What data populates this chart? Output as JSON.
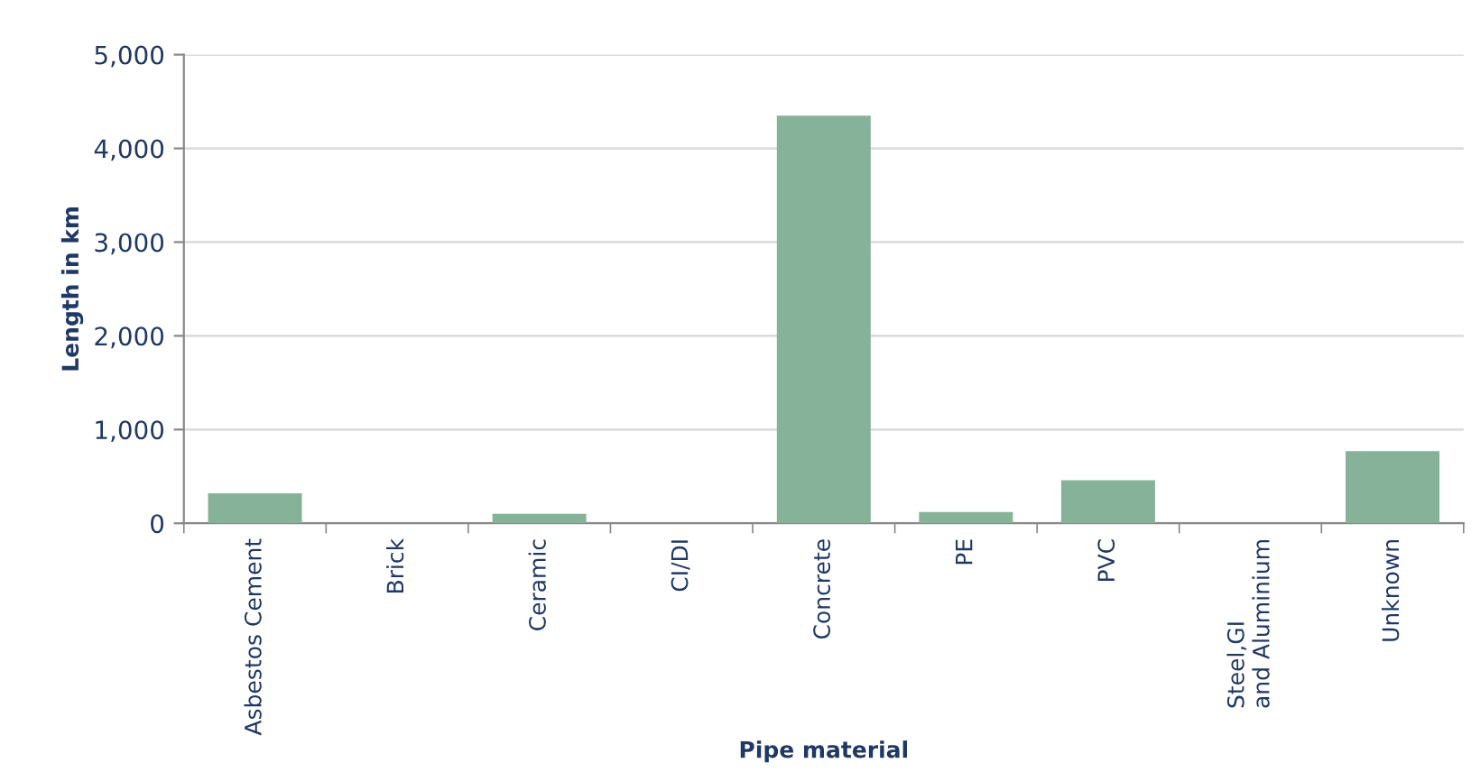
{
  "chart_data": {
    "type": "bar",
    "xlabel": "Pipe material",
    "ylabel": "Length in km",
    "categories": [
      "Asbestos Cement",
      "Brick",
      "Ceramic",
      "CI/DI",
      "Concrete",
      "PE",
      "PVC",
      "Steel,GI\nand Aluminium",
      "Unknown"
    ],
    "values": [
      320,
      null,
      100,
      null,
      4350,
      120,
      460,
      null,
      770
    ],
    "color": "#87b29a",
    "ylim": [
      0,
      5000
    ],
    "yticks": [
      {
        "value": 0,
        "label": "0"
      },
      {
        "value": 1000,
        "label": "1,000"
      },
      {
        "value": 2000,
        "label": "2,000"
      },
      {
        "value": 3000,
        "label": "3,000"
      },
      {
        "value": 4000,
        "label": "4,000"
      },
      {
        "value": 5000,
        "label": "5,000"
      }
    ],
    "grid": "y"
  }
}
